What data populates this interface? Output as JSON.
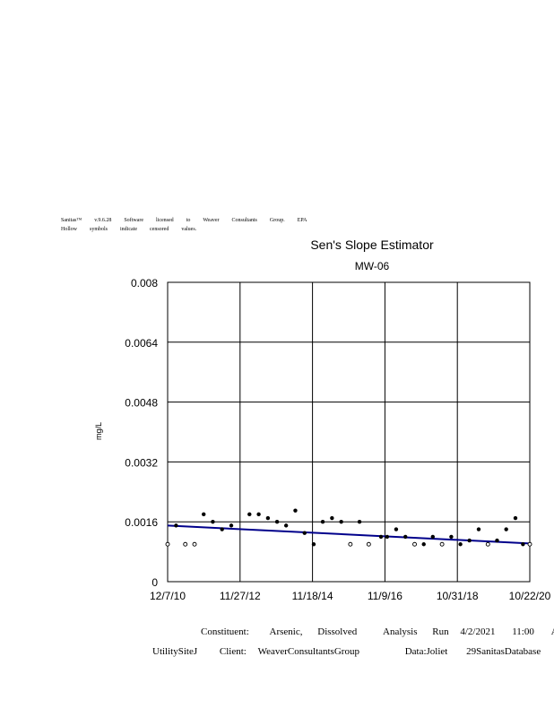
{
  "header": {
    "line1": [
      "Sanitas™",
      "v.9.6.28",
      "Software",
      "licensed",
      "to",
      "Weaver",
      "Consultants",
      "Group.",
      "EPA"
    ],
    "line2": [
      "Hollow",
      "symbols",
      "indicate",
      "censored",
      "values."
    ]
  },
  "footer": {
    "constituent_label": "Constituent:",
    "constituent_value": "Arsenic,",
    "constituent_value2": "Dissolved",
    "run_label": "Analysis",
    "run_label2": "Run",
    "run_date": "4/2/2021",
    "run_time": "11:00",
    "run_ampm": "AM",
    "site": "UtilitySiteJ",
    "client_label": "Client:",
    "client_value": "WeaverConsultantsGroup",
    "data_label": "Data:Joliet",
    "data_value": "29SanitasDatabase"
  },
  "chart_data": {
    "type": "scatter",
    "title": "Sen's Slope Estimator",
    "subtitle": "MW-06",
    "ylabel": "mg/L",
    "xlabel": "",
    "ylim": [
      0,
      0.008
    ],
    "yticks": [
      "0",
      "0.0016",
      "0.0032",
      "0.0048",
      "0.0064",
      "0.008"
    ],
    "xlim": [
      "2010-12-07",
      "2020-10-22"
    ],
    "xticks": [
      "12/7/10",
      "11/27/12",
      "11/18/14",
      "11/9/16",
      "10/31/18",
      "10/22/20"
    ],
    "grid": true,
    "colors": {
      "trend": "#00008b",
      "points": "#000000",
      "grid": "#000000"
    },
    "trend_line": [
      [
        "2010-12-07",
        0.0015
      ],
      [
        "2020-10-22",
        0.00102
      ]
    ],
    "series": [
      {
        "points": [
          {
            "x": "2010-12-07",
            "y": 0.001,
            "censored": true
          },
          {
            "x": "2011-03-01",
            "y": 0.0015,
            "censored": false
          },
          {
            "x": "2011-06-01",
            "y": 0.001,
            "censored": true
          },
          {
            "x": "2011-09-01",
            "y": 0.001,
            "censored": true
          },
          {
            "x": "2011-12-01",
            "y": 0.0018,
            "censored": false
          },
          {
            "x": "2012-03-01",
            "y": 0.0016,
            "censored": false
          },
          {
            "x": "2012-06-01",
            "y": 0.0014,
            "censored": false
          },
          {
            "x": "2012-09-01",
            "y": 0.0015,
            "censored": false
          },
          {
            "x": "2013-03-01",
            "y": 0.0018,
            "censored": false
          },
          {
            "x": "2013-06-01",
            "y": 0.0018,
            "censored": false
          },
          {
            "x": "2013-09-01",
            "y": 0.0017,
            "censored": false
          },
          {
            "x": "2013-12-01",
            "y": 0.0016,
            "censored": false
          },
          {
            "x": "2014-03-01",
            "y": 0.0015,
            "censored": false
          },
          {
            "x": "2014-06-01",
            "y": 0.0019,
            "censored": false
          },
          {
            "x": "2014-09-01",
            "y": 0.0013,
            "censored": false
          },
          {
            "x": "2014-12-01",
            "y": 0.001,
            "censored": false
          },
          {
            "x": "2015-03-01",
            "y": 0.0016,
            "censored": false
          },
          {
            "x": "2015-06-01",
            "y": 0.0017,
            "censored": false
          },
          {
            "x": "2015-09-01",
            "y": 0.0016,
            "censored": false
          },
          {
            "x": "2015-12-01",
            "y": 0.001,
            "censored": true
          },
          {
            "x": "2016-03-01",
            "y": 0.0016,
            "censored": false
          },
          {
            "x": "2016-06-01",
            "y": 0.001,
            "censored": true
          },
          {
            "x": "2016-10-01",
            "y": 0.0012,
            "censored": false
          },
          {
            "x": "2016-12-01",
            "y": 0.0012,
            "censored": false
          },
          {
            "x": "2017-03-01",
            "y": 0.0014,
            "censored": false
          },
          {
            "x": "2017-06-01",
            "y": 0.0012,
            "censored": false
          },
          {
            "x": "2017-09-01",
            "y": 0.001,
            "censored": true
          },
          {
            "x": "2017-12-01",
            "y": 0.001,
            "censored": false
          },
          {
            "x": "2018-03-01",
            "y": 0.0012,
            "censored": false
          },
          {
            "x": "2018-06-01",
            "y": 0.001,
            "censored": true
          },
          {
            "x": "2018-09-01",
            "y": 0.0012,
            "censored": false
          },
          {
            "x": "2018-12-01",
            "y": 0.001,
            "censored": false
          },
          {
            "x": "2019-03-01",
            "y": 0.0011,
            "censored": false
          },
          {
            "x": "2019-06-01",
            "y": 0.0014,
            "censored": false
          },
          {
            "x": "2019-09-01",
            "y": 0.001,
            "censored": true
          },
          {
            "x": "2019-12-01",
            "y": 0.0011,
            "censored": false
          },
          {
            "x": "2020-03-01",
            "y": 0.0014,
            "censored": false
          },
          {
            "x": "2020-06-01",
            "y": 0.0017,
            "censored": false
          },
          {
            "x": "2020-08-15",
            "y": 0.001,
            "censored": false
          },
          {
            "x": "2020-10-22",
            "y": 0.001,
            "censored": true
          }
        ]
      }
    ]
  }
}
